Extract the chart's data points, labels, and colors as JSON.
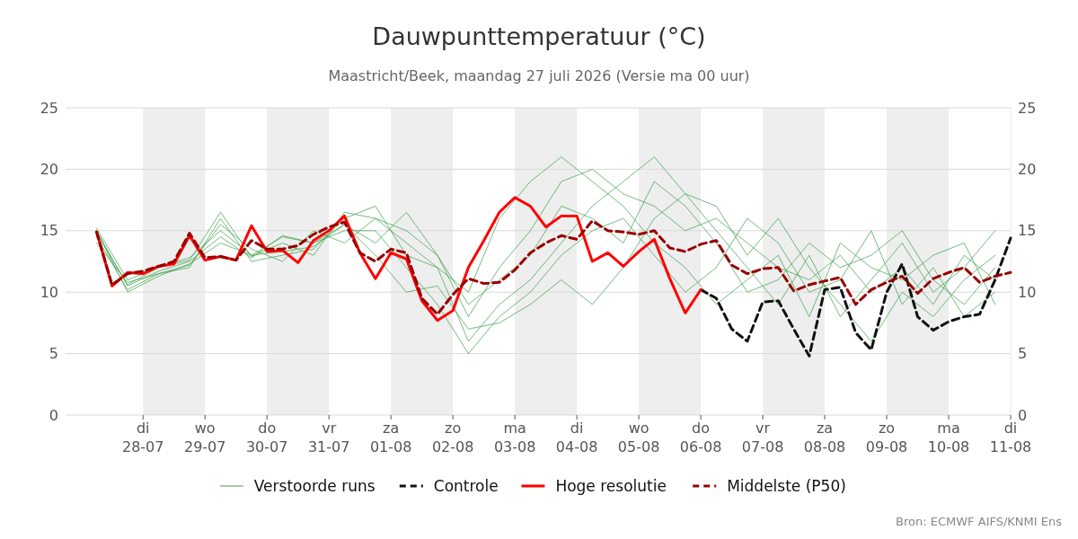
{
  "chart_data": {
    "type": "line",
    "title": "Dauwpunttemperatuur (°C)",
    "subtitle": "Maastricht/Beek, maandag 27 juli 2026 (Versie ma 00 uur)",
    "annotations": [
      "Bron: ECMWF AIFS/KNMI Ens"
    ],
    "xlim": [
      "2026-07-26T18:00",
      "2026-08-11T00:00"
    ],
    "xticks": [
      {
        "value": "2026-07-28",
        "label": "di\n28-07"
      },
      {
        "value": "2026-07-29",
        "label": "wo\n29-07"
      },
      {
        "value": "2026-07-30",
        "label": "do\n30-07"
      },
      {
        "value": "2026-07-31",
        "label": "vr\n31-07"
      },
      {
        "value": "2026-08-01",
        "label": "za\n01-08"
      },
      {
        "value": "2026-08-02",
        "label": "zo\n02-08"
      },
      {
        "value": "2026-08-03",
        "label": "ma\n03-08"
      },
      {
        "value": "2026-08-04",
        "label": "di\n04-08"
      },
      {
        "value": "2026-08-05",
        "label": "wo\n05-08"
      },
      {
        "value": "2026-08-06",
        "label": "do\n06-08"
      },
      {
        "value": "2026-08-07",
        "label": "vr\n07-08"
      },
      {
        "value": "2026-08-08",
        "label": "za\n08-08"
      },
      {
        "value": "2026-08-09",
        "label": "zo\n09-08"
      },
      {
        "value": "2026-08-10",
        "label": "ma\n10-08"
      },
      {
        "value": "2026-08-11",
        "label": "di\n11-08"
      }
    ],
    "ylim": [
      0,
      25
    ],
    "yticks": [
      0,
      5,
      10,
      15,
      20,
      25
    ],
    "y2lim": [
      0,
      25
    ],
    "y2ticks": [
      0,
      5,
      10,
      15,
      20,
      25
    ],
    "grid": "y",
    "legend": "bottom",
    "marker": "none",
    "bands": [
      {
        "axis": "x",
        "from": "2026-07-28",
        "to": "2026-07-29",
        "color": "#eeeeee"
      },
      {
        "axis": "x",
        "from": "2026-07-30",
        "to": "2026-07-31",
        "color": "#eeeeee"
      },
      {
        "axis": "x",
        "from": "2026-08-01",
        "to": "2026-08-02",
        "color": "#eeeeee"
      },
      {
        "axis": "x",
        "from": "2026-08-03",
        "to": "2026-08-04",
        "color": "#eeeeee"
      },
      {
        "axis": "x",
        "from": "2026-08-05",
        "to": "2026-08-06",
        "color": "#eeeeee"
      },
      {
        "axis": "x",
        "from": "2026-08-07",
        "to": "2026-08-08",
        "color": "#eeeeee"
      },
      {
        "axis": "x",
        "from": "2026-08-09",
        "to": "2026-08-10",
        "color": "#eeeeee"
      }
    ],
    "x": [
      "2026-07-27T06:00",
      "2026-07-27T12:00",
      "2026-07-27T18:00",
      "2026-07-28T00:00",
      "2026-07-28T06:00",
      "2026-07-28T12:00",
      "2026-07-28T18:00",
      "2026-07-29T00:00",
      "2026-07-29T06:00",
      "2026-07-29T12:00",
      "2026-07-29T18:00",
      "2026-07-30T00:00",
      "2026-07-30T06:00",
      "2026-07-30T12:00",
      "2026-07-30T18:00",
      "2026-07-31T00:00",
      "2026-07-31T06:00",
      "2026-07-31T12:00",
      "2026-07-31T18:00",
      "2026-08-01T00:00",
      "2026-08-01T06:00",
      "2026-08-01T12:00",
      "2026-08-01T18:00",
      "2026-08-02T00:00",
      "2026-08-02T06:00",
      "2026-08-02T12:00",
      "2026-08-02T18:00",
      "2026-08-03T00:00",
      "2026-08-03T06:00",
      "2026-08-03T12:00",
      "2026-08-03T18:00",
      "2026-08-04T00:00",
      "2026-08-04T06:00",
      "2026-08-04T12:00",
      "2026-08-04T18:00",
      "2026-08-05T00:00",
      "2026-08-05T06:00",
      "2026-08-05T12:00",
      "2026-08-05T18:00",
      "2026-08-06T00:00",
      "2026-08-06T06:00",
      "2026-08-06T12:00",
      "2026-08-06T18:00",
      "2026-08-07T00:00",
      "2026-08-07T06:00",
      "2026-08-07T12:00",
      "2026-08-07T18:00",
      "2026-08-08T00:00",
      "2026-08-08T06:00",
      "2026-08-08T12:00",
      "2026-08-08T18:00",
      "2026-08-09T00:00",
      "2026-08-09T06:00",
      "2026-08-09T12:00",
      "2026-08-09T18:00",
      "2026-08-10T00:00",
      "2026-08-10T06:00",
      "2026-08-10T12:00",
      "2026-08-10T18:00",
      "2026-08-11T00:00"
    ],
    "series": [
      {
        "name": "Verstoorde runs",
        "color": "#3a9e4a",
        "line_style": "solid",
        "x": [
          "2026-07-27T06:00",
          "2026-07-27T18:00",
          "2026-07-28T06:00",
          "2026-07-28T18:00",
          "2026-07-29T06:00",
          "2026-07-29T18:00",
          "2026-07-30T06:00",
          "2026-07-30T18:00",
          "2026-07-31T06:00",
          "2026-07-31T18:00",
          "2026-08-01T06:00",
          "2026-08-01T18:00",
          "2026-08-02T06:00",
          "2026-08-02T18:00",
          "2026-08-03T06:00",
          "2026-08-03T18:00",
          "2026-08-04T06:00",
          "2026-08-04T18:00",
          "2026-08-05T06:00",
          "2026-08-05T18:00",
          "2026-08-06T06:00",
          "2026-08-06T18:00",
          "2026-08-07T06:00",
          "2026-08-07T18:00",
          "2026-08-08T06:00",
          "2026-08-08T18:00",
          "2026-08-09T06:00",
          "2026-08-09T18:00",
          "2026-08-10T06:00",
          "2026-08-10T18:00"
        ],
        "values": [
          15,
          10.5,
          11.7,
          12.5,
          14.5,
          12.8,
          14.6,
          14,
          15.5,
          14,
          16.5,
          13,
          8,
          12,
          15,
          19,
          20,
          18,
          17,
          15,
          16,
          14,
          12,
          11,
          13,
          10,
          12,
          9,
          13,
          11
        ]
      },
      {
        "color": "#3a9e4a",
        "line_style": "solid",
        "x": [
          "2026-07-27T06:00",
          "2026-07-27T18:00",
          "2026-07-28T06:00",
          "2026-07-28T18:00",
          "2026-07-29T06:00",
          "2026-07-29T18:00",
          "2026-07-30T06:00",
          "2026-07-30T18:00",
          "2026-07-31T06:00",
          "2026-07-31T18:00",
          "2026-08-01T06:00",
          "2026-08-01T18:00",
          "2026-08-02T06:00",
          "2026-08-02T18:00",
          "2026-08-03T06:00",
          "2026-08-03T18:00",
          "2026-08-04T06:00",
          "2026-08-04T18:00",
          "2026-08-05T06:00",
          "2026-08-05T18:00",
          "2026-08-06T06:00",
          "2026-08-06T18:00",
          "2026-08-07T06:00",
          "2026-08-07T18:00",
          "2026-08-08T06:00",
          "2026-08-08T18:00",
          "2026-08-09T06:00",
          "2026-08-09T18:00",
          "2026-08-10T06:00",
          "2026-08-10T18:00"
        ],
        "values": [
          14.5,
          10.2,
          11.5,
          12,
          16,
          12.5,
          13,
          13.5,
          16,
          17,
          13,
          12,
          6,
          9,
          11,
          14,
          17,
          19,
          21,
          18,
          15,
          12,
          9,
          13,
          8,
          11,
          14,
          10,
          12,
          15
        ]
      },
      {
        "color": "#3a9e4a",
        "line_style": "solid",
        "x": [
          "2026-07-27T06:00",
          "2026-07-27T18:00",
          "2026-07-28T06:00",
          "2026-07-28T18:00",
          "2026-07-29T06:00",
          "2026-07-29T18:00",
          "2026-07-30T06:00",
          "2026-07-30T18:00",
          "2026-07-31T06:00",
          "2026-07-31T18:00",
          "2026-08-01T06:00",
          "2026-08-01T18:00",
          "2026-08-02T06:00",
          "2026-08-02T18:00",
          "2026-08-03T06:00",
          "2026-08-03T18:00",
          "2026-08-04T06:00",
          "2026-08-04T18:00",
          "2026-08-05T06:00",
          "2026-08-05T18:00",
          "2026-08-06T06:00",
          "2026-08-06T18:00",
          "2026-08-07T06:00",
          "2026-08-07T18:00",
          "2026-08-08T06:00",
          "2026-08-08T18:00",
          "2026-08-09T06:00",
          "2026-08-09T18:00",
          "2026-08-10T06:00",
          "2026-08-10T18:00"
        ],
        "values": [
          15.2,
          11,
          12,
          12.8,
          15,
          13,
          14.5,
          14,
          15,
          15,
          12,
          9,
          5,
          8,
          10,
          13,
          15,
          16,
          13,
          10,
          12,
          16,
          14,
          10,
          11,
          15,
          9,
          12,
          8,
          10
        ]
      },
      {
        "color": "#3a9e4a",
        "line_style": "solid",
        "x": [
          "2026-07-27T06:00",
          "2026-07-27T18:00",
          "2026-07-28T06:00",
          "2026-07-28T18:00",
          "2026-07-29T06:00",
          "2026-07-29T18:00",
          "2026-07-30T06:00",
          "2026-07-30T18:00",
          "2026-07-31T06:00",
          "2026-07-31T18:00",
          "2026-08-01T06:00",
          "2026-08-01T18:00",
          "2026-08-02T06:00",
          "2026-08-02T18:00",
          "2026-08-03T06:00",
          "2026-08-03T18:00",
          "2026-08-04T06:00",
          "2026-08-04T18:00",
          "2026-08-05T06:00",
          "2026-08-05T18:00",
          "2026-08-06T06:00",
          "2026-08-06T18:00",
          "2026-08-07T06:00",
          "2026-08-07T18:00",
          "2026-08-08T06:00",
          "2026-08-08T18:00",
          "2026-08-09T06:00",
          "2026-08-09T18:00",
          "2026-08-10T06:00",
          "2026-08-10T18:00"
        ],
        "values": [
          14,
          10.8,
          11.5,
          12.2,
          15.5,
          13.5,
          12.5,
          15,
          14,
          16,
          14,
          12,
          10,
          16,
          19,
          21,
          19,
          17,
          14,
          12,
          9,
          11,
          13,
          8,
          14,
          12,
          11,
          13,
          14,
          9
        ]
      },
      {
        "color": "#3a9e4a",
        "line_style": "solid",
        "x": [
          "2026-07-27T06:00",
          "2026-07-27T18:00",
          "2026-07-28T06:00",
          "2026-07-28T18:00",
          "2026-07-29T06:00",
          "2026-07-29T18:00",
          "2026-07-30T06:00",
          "2026-07-30T18:00",
          "2026-07-31T06:00",
          "2026-07-31T18:00",
          "2026-08-01T06:00",
          "2026-08-01T18:00",
          "2026-08-02T06:00",
          "2026-08-02T18:00",
          "2026-08-03T06:00",
          "2026-08-03T18:00",
          "2026-08-04T06:00",
          "2026-08-04T18:00",
          "2026-08-05T06:00",
          "2026-08-05T18:00",
          "2026-08-06T06:00",
          "2026-08-06T18:00",
          "2026-08-07T06:00",
          "2026-08-07T18:00",
          "2026-08-08T06:00",
          "2026-08-08T18:00",
          "2026-08-09T06:00",
          "2026-08-09T18:00",
          "2026-08-10T06:00",
          "2026-08-10T18:00"
        ],
        "values": [
          15,
          10,
          11.3,
          12.3,
          14,
          13,
          13.3,
          13.7,
          15.5,
          13,
          10,
          10.5,
          7,
          7.5,
          9,
          11,
          9,
          12,
          16,
          18,
          17,
          13,
          16,
          12,
          9,
          6,
          10,
          8,
          11,
          13
        ]
      },
      {
        "color": "#3a9e4a",
        "line_style": "solid",
        "x": [
          "2026-07-27T06:00",
          "2026-07-27T18:00",
          "2026-07-28T06:00",
          "2026-07-28T18:00",
          "2026-07-29T06:00",
          "2026-07-29T18:00",
          "2026-07-30T06:00",
          "2026-07-30T18:00",
          "2026-07-31T06:00",
          "2026-07-31T18:00",
          "2026-08-01T06:00",
          "2026-08-01T18:00",
          "2026-08-02T06:00",
          "2026-08-02T18:00",
          "2026-08-03T06:00",
          "2026-08-03T18:00",
          "2026-08-04T06:00",
          "2026-08-04T18:00",
          "2026-08-05T06:00",
          "2026-08-05T18:00",
          "2026-08-06T06:00",
          "2026-08-06T18:00",
          "2026-08-07T06:00",
          "2026-08-07T18:00",
          "2026-08-08T06:00",
          "2026-08-08T18:00",
          "2026-08-09T06:00",
          "2026-08-09T18:00",
          "2026-08-10T06:00",
          "2026-08-10T18:00"
        ],
        "values": [
          14.8,
          10.6,
          12,
          12.6,
          16.5,
          12.9,
          14,
          13,
          16.5,
          16,
          15,
          13,
          9,
          11,
          13,
          17,
          16,
          14,
          19,
          17,
          14,
          10,
          11,
          14,
          12,
          13,
          15,
          11,
          9,
          12
        ]
      },
      {
        "name": "Controle",
        "color": "#111111",
        "line_style": "dashed",
        "x": [
          "2026-08-06T00:00",
          "2026-08-06T06:00",
          "2026-08-06T12:00",
          "2026-08-06T18:00",
          "2026-08-07T00:00",
          "2026-08-07T06:00",
          "2026-08-07T12:00",
          "2026-08-07T18:00",
          "2026-08-08T00:00",
          "2026-08-08T06:00",
          "2026-08-08T12:00",
          "2026-08-08T18:00",
          "2026-08-09T00:00",
          "2026-08-09T06:00",
          "2026-08-09T12:00",
          "2026-08-09T18:00",
          "2026-08-10T00:00",
          "2026-08-10T06:00",
          "2026-08-10T12:00",
          "2026-08-10T18:00",
          "2026-08-11T00:00"
        ],
        "values": [
          10.2,
          9.5,
          7.0,
          6.0,
          9.2,
          9.3,
          7.0,
          4.8,
          10.2,
          10.4,
          6.7,
          5.3,
          10.0,
          12.3,
          8.0,
          6.9,
          7.6,
          8.0,
          8.2,
          11.0,
          14.4
        ]
      },
      {
        "name": "Hoge resolutie",
        "color": "#ff0000",
        "line_style": "solid",
        "values": [
          14.9,
          10.5,
          11.6,
          11.5,
          12.1,
          12.3,
          14.6,
          12.6,
          12.9,
          12.6,
          15.4,
          13.3,
          13.4,
          12.4,
          14.2,
          15.0,
          16.2,
          13.2,
          11.1,
          13.2,
          12.7,
          9.3,
          7.7,
          8.5,
          12.0,
          14.2,
          16.5,
          17.7,
          17.0,
          15.3,
          16.2,
          16.2,
          12.5,
          13.2,
          12.1,
          13.3,
          14.3,
          11.1,
          8.3,
          10.2,
          null,
          null,
          null,
          null,
          null,
          null,
          null,
          null,
          null,
          null,
          null,
          null,
          null,
          null,
          null,
          null,
          null,
          null,
          null,
          null
        ]
      },
      {
        "name": "Middelste (P50)",
        "color": "#990000",
        "line_style": "dashed",
        "values": [
          14.9,
          10.6,
          11.5,
          11.7,
          12.1,
          12.5,
          14.8,
          12.8,
          12.9,
          12.6,
          14.2,
          13.5,
          13.5,
          13.8,
          14.7,
          15.3,
          15.7,
          13.2,
          12.5,
          13.5,
          13.2,
          9.5,
          8.2,
          9.8,
          11.1,
          10.7,
          10.8,
          11.8,
          13.2,
          14.0,
          14.6,
          14.3,
          15.8,
          15.0,
          14.9,
          14.7,
          15.0,
          13.6,
          13.3,
          13.9,
          14.2,
          12.2,
          11.5,
          11.9,
          12.0,
          10.1,
          10.6,
          10.9,
          11.2,
          9.0,
          10.2,
          10.8,
          11.3,
          9.9,
          11.1,
          11.6,
          12.0,
          10.8,
          11.3,
          11.6
        ]
      }
    ]
  }
}
